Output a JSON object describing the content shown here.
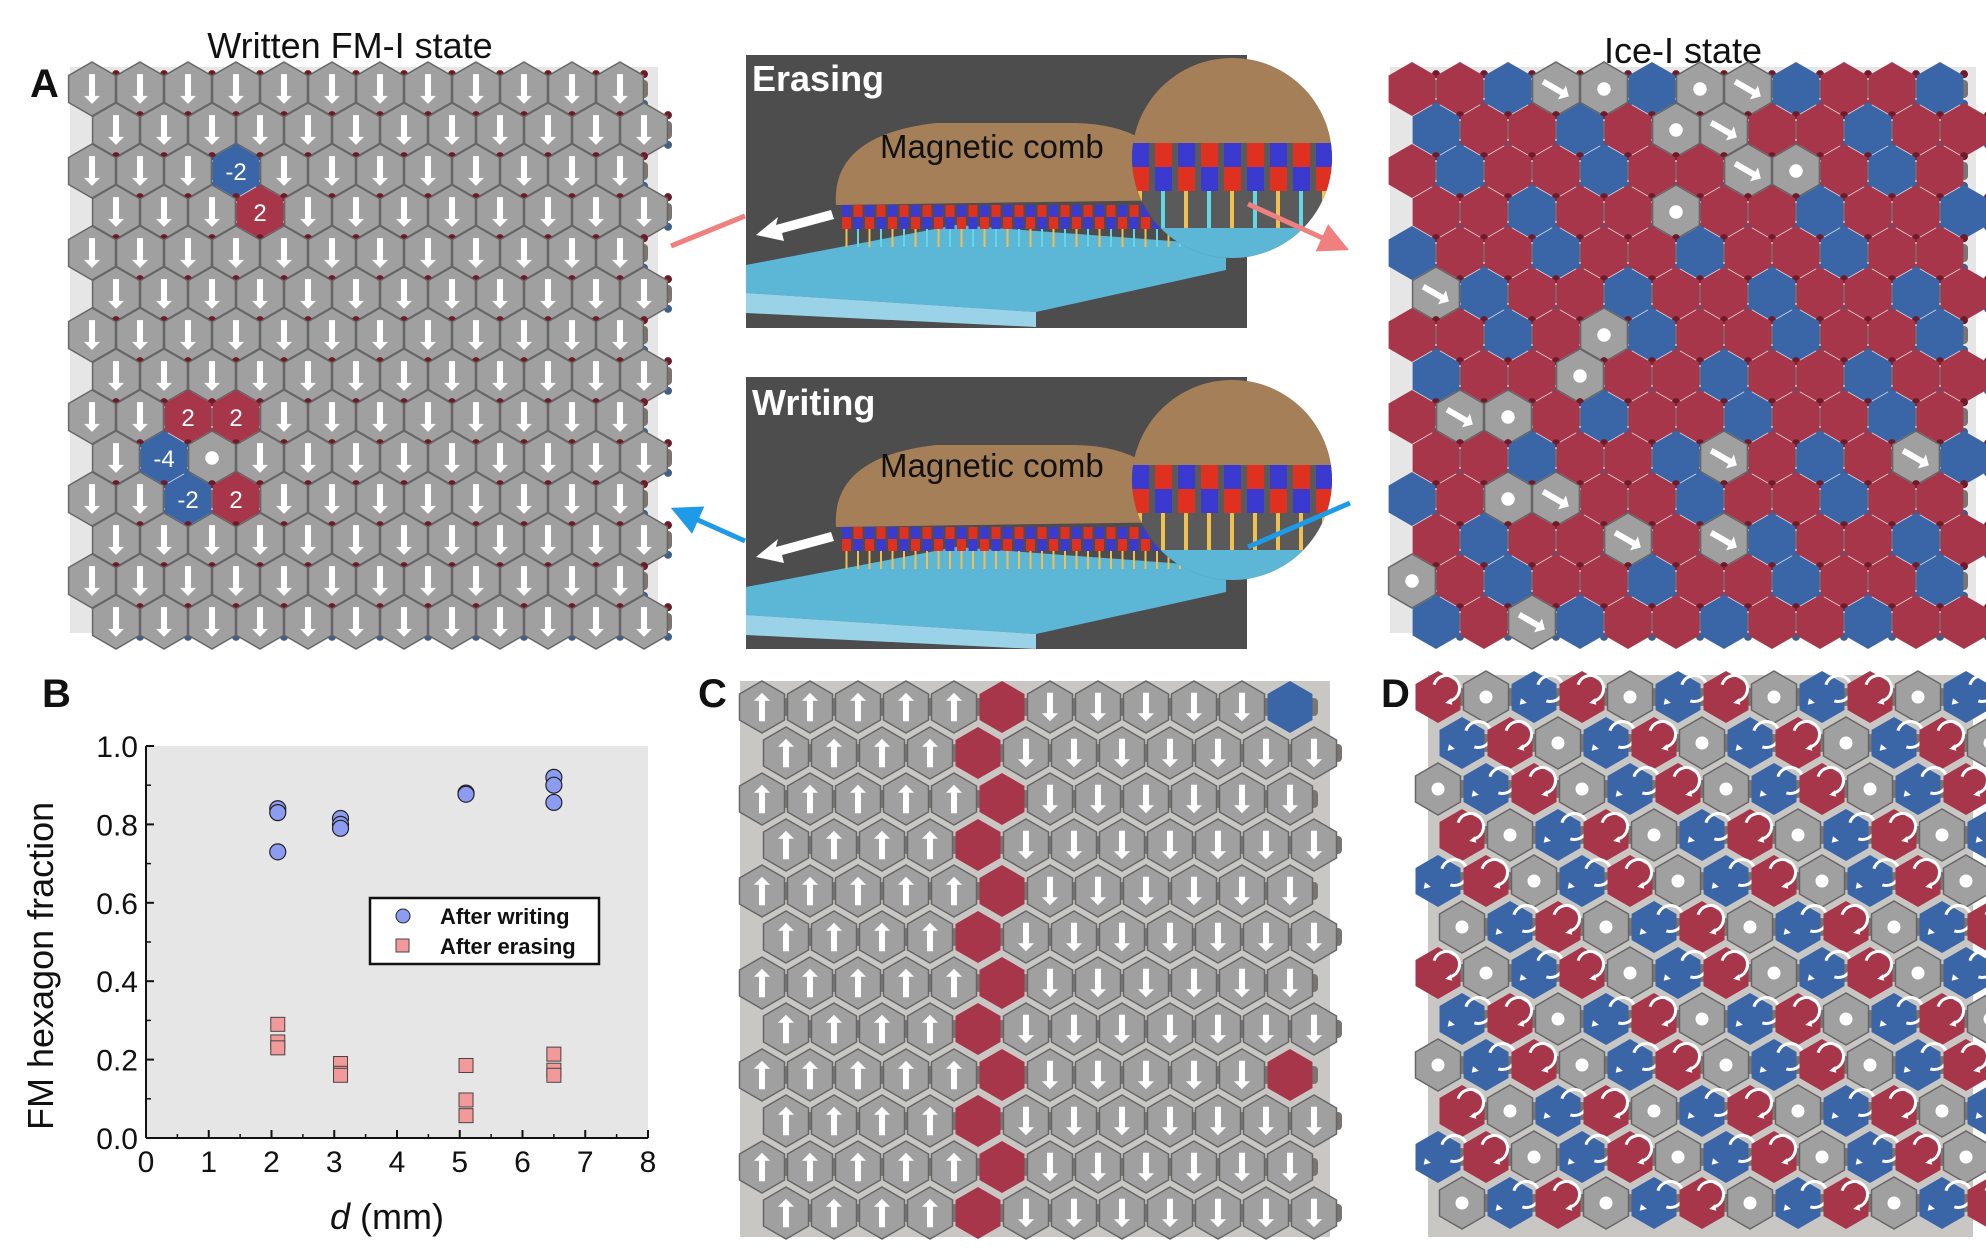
{
  "panel_labels": {
    "a": "A",
    "b": "B",
    "c": "C",
    "d": "D"
  },
  "panel_a": {
    "title": "Written FM-I state",
    "charge_labels": [
      "-2",
      "2",
      "2",
      "2",
      "-4",
      "-2",
      "2"
    ]
  },
  "panel_ice": {
    "title": "Ice-I state"
  },
  "comb_erasing": {
    "title": "Erasing",
    "comb_label": "Magnetic comb"
  },
  "comb_writing": {
    "title": "Writing",
    "comb_label": "Magnetic comb"
  },
  "colors": {
    "red_hex": "#a8364a",
    "blue_hex": "#3a66a8",
    "gray_hex": "#a0a0a0",
    "erase_arrow": "#f08080",
    "write_arrow": "#1e9be8",
    "writing_marker": "#8c9cf2",
    "erasing_marker": "#f29a9a",
    "comb_wood": "#a57f57",
    "slab": "#5cb6d6",
    "box_bg": "#4d4d4d"
  },
  "chart_data": {
    "type": "scatter",
    "xlabel_italic": "d",
    "xlabel_unit": " (mm)",
    "ylabel": "FM hexagon fraction",
    "xlim": [
      0,
      8
    ],
    "ylim": [
      0.0,
      1.0
    ],
    "xticks": [
      "0",
      "1",
      "2",
      "3",
      "4",
      "5",
      "6",
      "7",
      "8"
    ],
    "yticks": [
      "0.0",
      "0.2",
      "0.4",
      "0.6",
      "0.8",
      "1.0"
    ],
    "grid": false,
    "legend_position": "center-right",
    "series": [
      {
        "name": "After writing",
        "marker": "circle",
        "x": [
          2.1,
          2.1,
          2.1,
          3.1,
          3.1,
          3.1,
          5.1,
          5.1,
          6.5,
          6.5,
          6.5
        ],
        "y": [
          0.84,
          0.83,
          0.73,
          0.815,
          0.8,
          0.79,
          0.88,
          0.877,
          0.92,
          0.9,
          0.856
        ]
      },
      {
        "name": "After erasing",
        "marker": "square",
        "x": [
          2.1,
          2.1,
          2.1,
          3.1,
          3.1,
          3.1,
          5.1,
          5.1,
          5.1,
          6.5,
          6.5,
          6.5
        ],
        "y": [
          0.29,
          0.245,
          0.23,
          0.19,
          0.165,
          0.16,
          0.185,
          0.097,
          0.057,
          0.214,
          0.173,
          0.16
        ]
      }
    ]
  }
}
